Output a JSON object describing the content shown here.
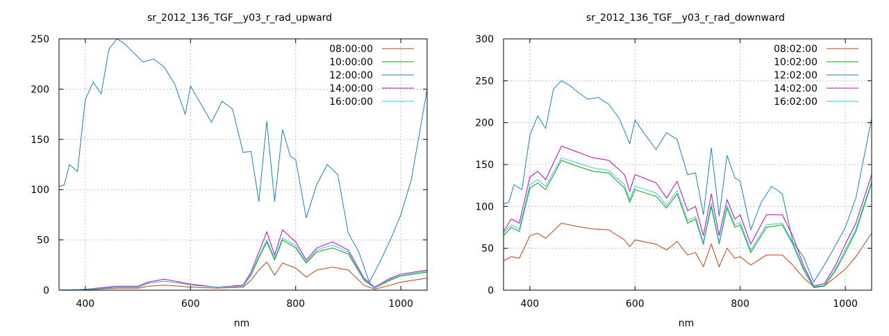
{
  "colors": {
    "08": "#b7410e",
    "10": "#0aa00a",
    "12": "#1a7fc1",
    "14": "#c000c0",
    "16": "#33c8ea",
    "grid": "#bcbcbc",
    "axis": "#000000"
  },
  "chart_data": [
    {
      "type": "line",
      "title": "sr_2012_136_TGF__y03_r_rad_upward",
      "xlabel": "nm",
      "ylabel": "",
      "xlim": [
        350,
        1050
      ],
      "ylim": [
        0,
        250
      ],
      "xticks": [
        400,
        600,
        800,
        1000
      ],
      "yticks": [
        0,
        50,
        100,
        150,
        200,
        250
      ],
      "grid": true,
      "legend_position": "top-right",
      "series": [
        {
          "name": "08:00:00",
          "color_key": "08",
          "x": [
            350,
            400,
            460,
            500,
            520,
            550,
            580,
            600,
            650,
            700,
            715,
            730,
            745,
            760,
            775,
            800,
            820,
            840,
            870,
            900,
            930,
            950,
            980,
            1000,
            1050
          ],
          "y": [
            0,
            0.5,
            2,
            2,
            4,
            5,
            4,
            3,
            2,
            3,
            10,
            20,
            28,
            15,
            27,
            22,
            13,
            20,
            23,
            20,
            5,
            1,
            5,
            8,
            12
          ]
        },
        {
          "name": "10:00:00",
          "color_key": "10",
          "x": [
            350,
            400,
            460,
            500,
            520,
            550,
            580,
            600,
            650,
            700,
            715,
            730,
            745,
            760,
            775,
            800,
            820,
            840,
            870,
            900,
            930,
            950,
            980,
            1000,
            1050
          ],
          "y": [
            0,
            1,
            3,
            3,
            7,
            9,
            7,
            5,
            3,
            4,
            15,
            32,
            48,
            30,
            50,
            42,
            27,
            38,
            42,
            36,
            10,
            2,
            10,
            14,
            18
          ]
        },
        {
          "name": "12:00:00",
          "color_key": "12",
          "x": [
            350,
            360,
            370,
            385,
            400,
            415,
            430,
            445,
            460,
            475,
            490,
            510,
            530,
            550,
            570,
            590,
            600,
            620,
            640,
            660,
            680,
            700,
            715,
            730,
            745,
            760,
            775,
            790,
            800,
            820,
            840,
            860,
            880,
            900,
            920,
            940,
            960,
            980,
            1000,
            1020,
            1050
          ],
          "y": [
            103,
            105,
            125,
            118,
            190,
            207,
            195,
            240,
            250,
            245,
            237,
            227,
            230,
            222,
            205,
            175,
            203,
            185,
            167,
            188,
            180,
            137,
            138,
            88,
            168,
            88,
            160,
            133,
            130,
            72,
            105,
            125,
            115,
            57,
            38,
            8,
            28,
            50,
            75,
            110,
            200
          ]
        },
        {
          "name": "14:00:00",
          "color_key": "14",
          "x": [
            350,
            400,
            460,
            500,
            520,
            550,
            580,
            600,
            650,
            700,
            715,
            730,
            745,
            760,
            775,
            800,
            820,
            840,
            870,
            900,
            930,
            950,
            980,
            1000,
            1050
          ],
          "y": [
            0,
            1,
            4,
            4,
            8,
            11,
            8,
            6,
            3,
            5,
            18,
            38,
            58,
            35,
            60,
            48,
            30,
            42,
            48,
            40,
            12,
            3,
            12,
            16,
            20
          ]
        },
        {
          "name": "16:00:00",
          "color_key": "16",
          "x": [
            350,
            400,
            460,
            500,
            520,
            550,
            580,
            600,
            650,
            700,
            715,
            730,
            745,
            760,
            775,
            800,
            820,
            840,
            870,
            900,
            930,
            950,
            980,
            1000,
            1050
          ],
          "y": [
            0,
            1,
            3,
            3,
            7,
            9,
            7,
            5,
            3,
            4,
            16,
            34,
            50,
            32,
            52,
            44,
            28,
            40,
            45,
            38,
            11,
            2,
            11,
            15,
            19
          ]
        }
      ]
    },
    {
      "type": "line",
      "title": "sr_2012_136_TGF__y03_r_rad_downward",
      "xlabel": "nm",
      "ylabel": "",
      "xlim": [
        350,
        1050
      ],
      "ylim": [
        0,
        300
      ],
      "xticks": [
        400,
        600,
        800,
        1000
      ],
      "yticks": [
        0,
        50,
        100,
        150,
        200,
        250,
        300
      ],
      "grid": true,
      "legend_position": "top-right",
      "series": [
        {
          "name": "08:02:00",
          "color_key": "08",
          "x": [
            350,
            365,
            380,
            400,
            415,
            430,
            460,
            490,
            520,
            550,
            580,
            590,
            600,
            640,
            660,
            680,
            700,
            715,
            730,
            745,
            760,
            775,
            790,
            800,
            820,
            850,
            880,
            900,
            920,
            940,
            960,
            980,
            1000,
            1020,
            1050
          ],
          "y": [
            35,
            40,
            38,
            65,
            68,
            62,
            80,
            76,
            73,
            72,
            60,
            52,
            60,
            55,
            48,
            58,
            42,
            45,
            28,
            55,
            28,
            50,
            38,
            40,
            30,
            42,
            42,
            30,
            15,
            4,
            5,
            15,
            25,
            40,
            68
          ]
        },
        {
          "name": "10:02:00",
          "color_key": "10",
          "x": [
            350,
            365,
            380,
            400,
            415,
            430,
            460,
            490,
            520,
            550,
            580,
            590,
            600,
            640,
            660,
            680,
            700,
            715,
            730,
            745,
            760,
            775,
            790,
            800,
            820,
            850,
            880,
            900,
            920,
            940,
            960,
            980,
            1000,
            1020,
            1050
          ],
          "y": [
            65,
            75,
            70,
            122,
            128,
            120,
            155,
            148,
            142,
            140,
            122,
            105,
            120,
            112,
            98,
            115,
            80,
            85,
            55,
            100,
            55,
            98,
            75,
            78,
            45,
            75,
            78,
            55,
            25,
            3,
            5,
            22,
            45,
            70,
            128
          ]
        },
        {
          "name": "12:02:00",
          "color_key": "12",
          "x": [
            350,
            360,
            370,
            385,
            400,
            415,
            430,
            445,
            460,
            475,
            490,
            510,
            530,
            550,
            570,
            590,
            600,
            620,
            640,
            660,
            680,
            700,
            715,
            730,
            745,
            760,
            775,
            790,
            800,
            820,
            840,
            860,
            880,
            900,
            920,
            940,
            960,
            980,
            1000,
            1020,
            1050
          ],
          "y": [
            103,
            105,
            126,
            120,
            185,
            208,
            193,
            240,
            250,
            245,
            237,
            228,
            230,
            222,
            205,
            175,
            203,
            185,
            168,
            188,
            180,
            138,
            140,
            90,
            170,
            88,
            161,
            134,
            130,
            72,
            105,
            124,
            115,
            58,
            40,
            10,
            30,
            52,
            75,
            110,
            205
          ]
        },
        {
          "name": "14:02:00",
          "color_key": "14",
          "x": [
            350,
            365,
            380,
            400,
            415,
            430,
            460,
            490,
            520,
            550,
            580,
            590,
            600,
            640,
            660,
            680,
            700,
            715,
            730,
            745,
            760,
            775,
            790,
            800,
            820,
            850,
            880,
            900,
            920,
            940,
            960,
            980,
            1000,
            1020,
            1050
          ],
          "y": [
            70,
            85,
            80,
            135,
            142,
            132,
            172,
            165,
            158,
            155,
            138,
            118,
            138,
            128,
            110,
            130,
            95,
            100,
            65,
            115,
            65,
            108,
            85,
            90,
            55,
            90,
            90,
            65,
            30,
            5,
            8,
            28,
            55,
            80,
            138
          ]
        },
        {
          "name": "16:02:00",
          "color_key": "16",
          "x": [
            350,
            365,
            380,
            400,
            415,
            430,
            460,
            490,
            520,
            550,
            580,
            590,
            600,
            640,
            660,
            680,
            700,
            715,
            730,
            745,
            760,
            775,
            790,
            800,
            820,
            850,
            880,
            900,
            920,
            940,
            960,
            980,
            1000,
            1020,
            1050
          ],
          "y": [
            68,
            78,
            73,
            126,
            132,
            124,
            158,
            152,
            146,
            143,
            126,
            108,
            124,
            116,
            101,
            119,
            83,
            88,
            57,
            104,
            57,
            101,
            78,
            81,
            48,
            78,
            80,
            57,
            27,
            4,
            6,
            24,
            48,
            73,
            130
          ]
        }
      ]
    }
  ]
}
